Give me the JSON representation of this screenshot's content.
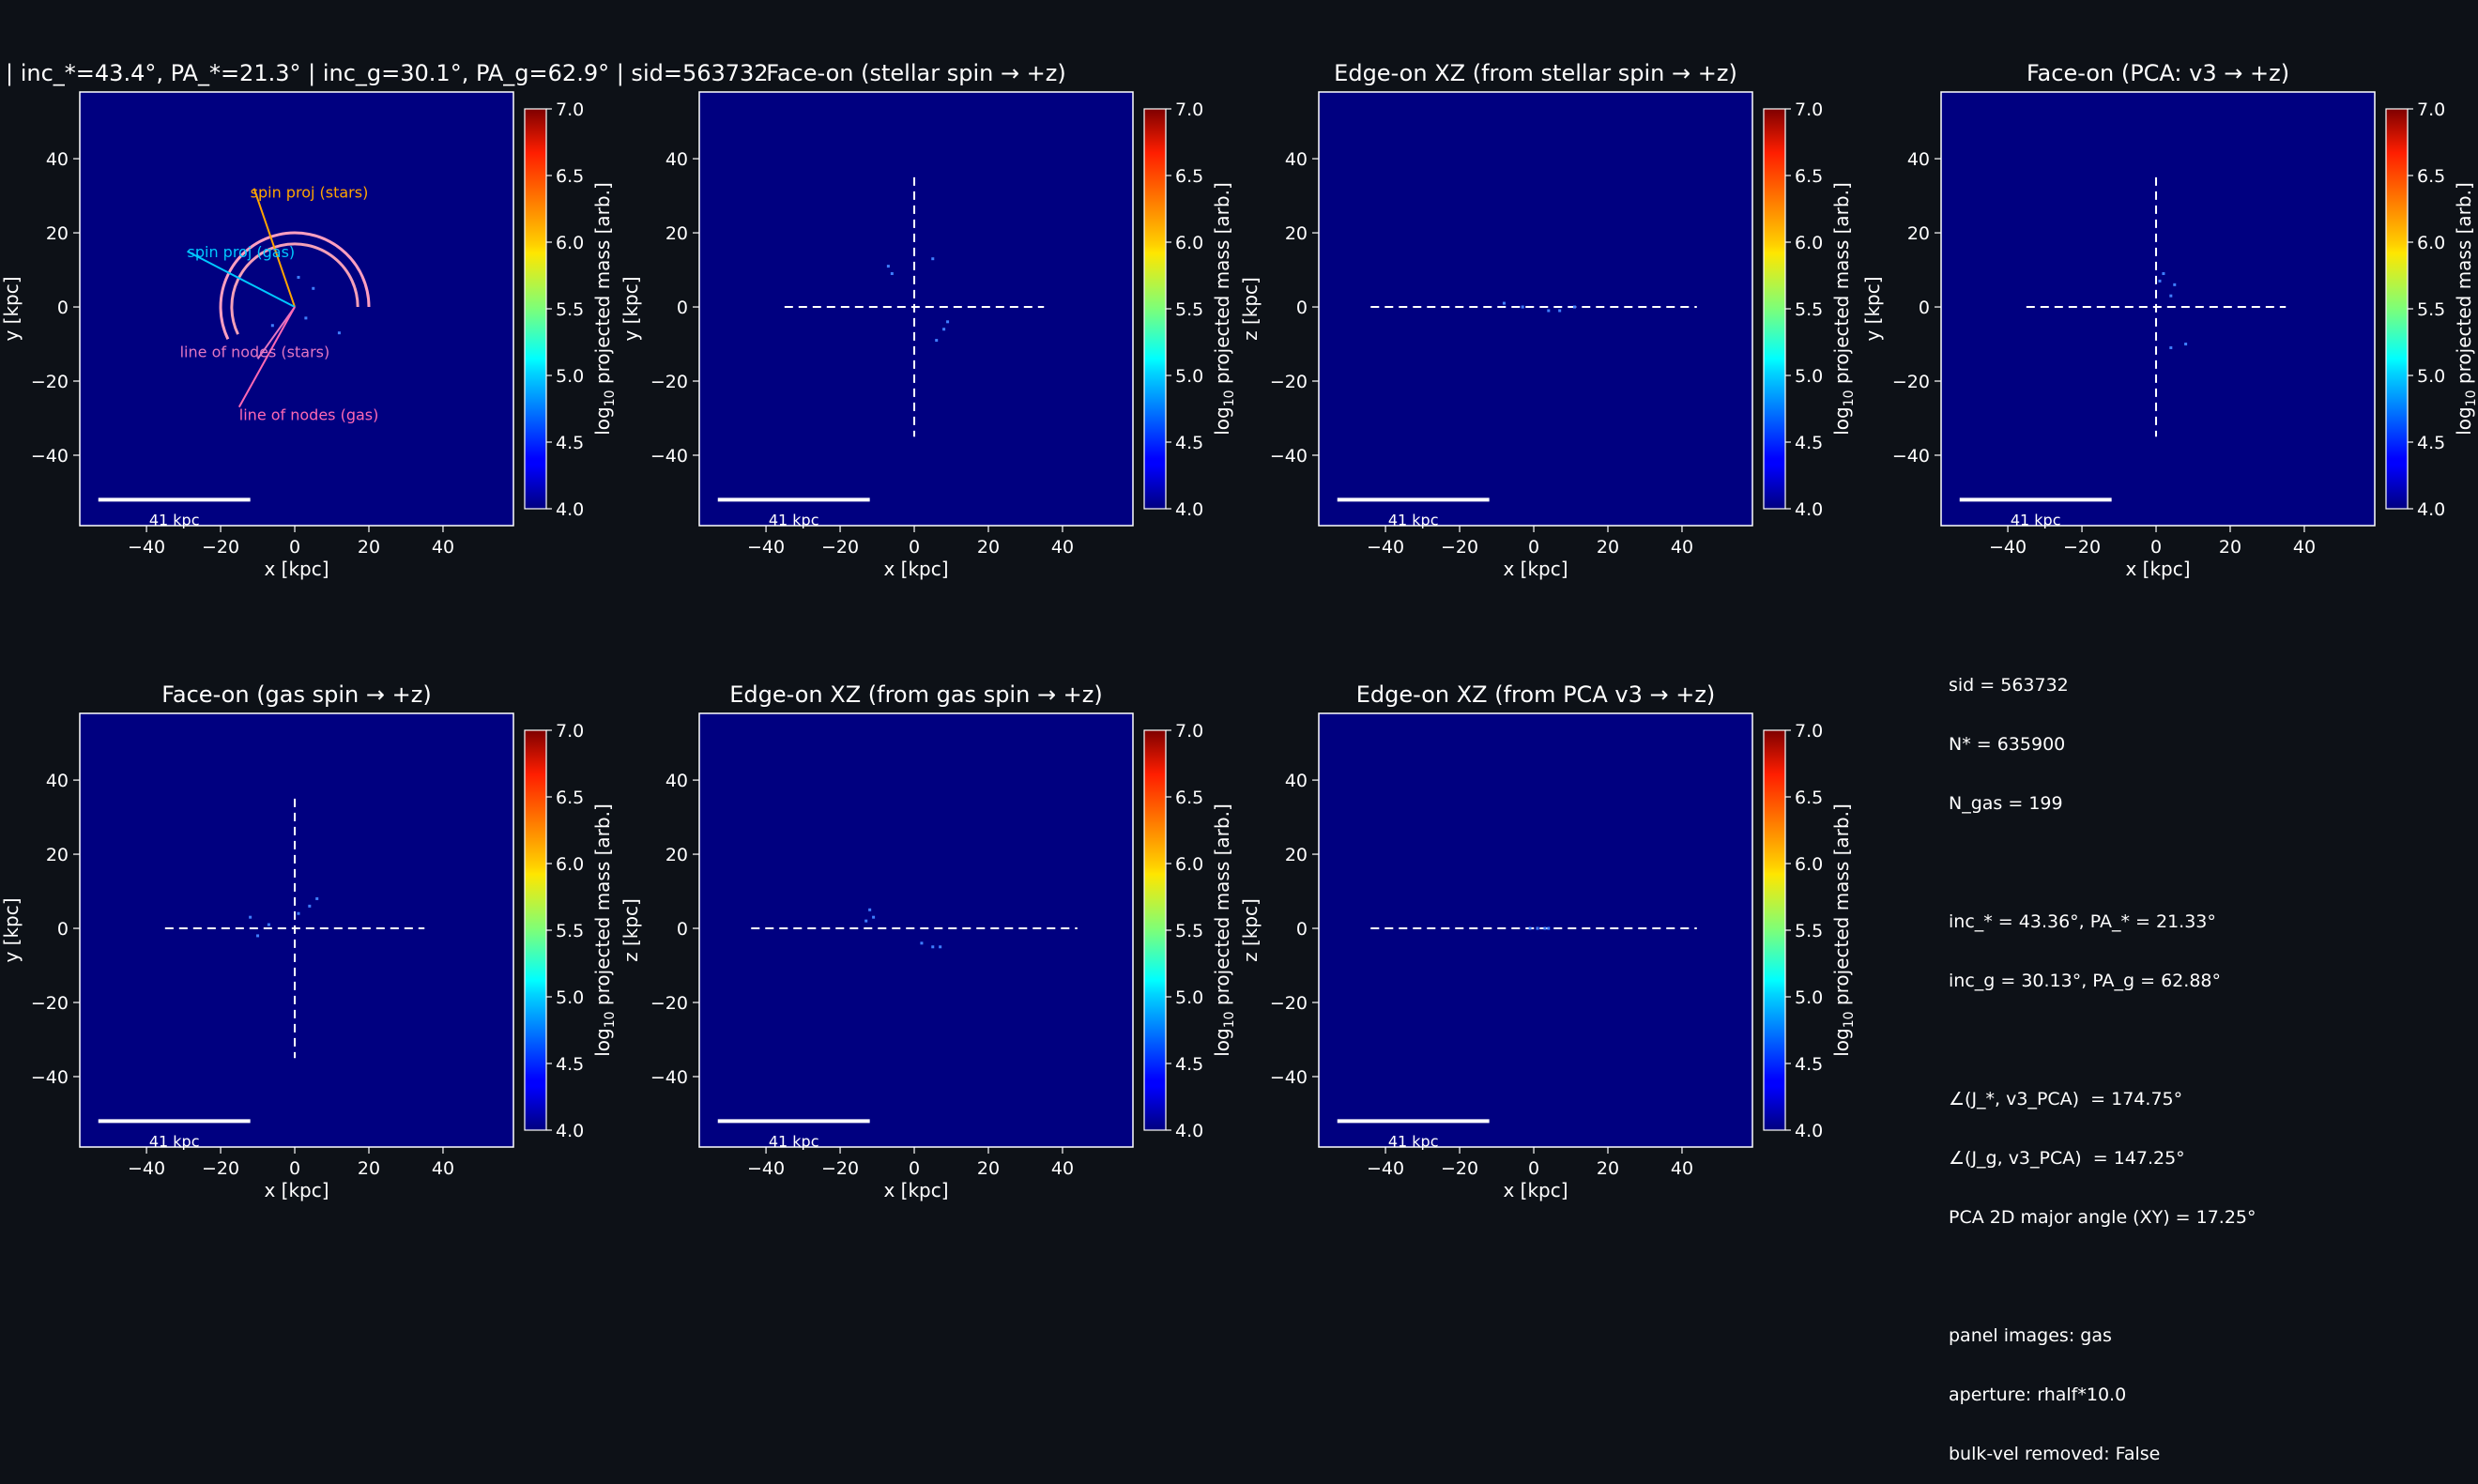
{
  "figure_title": "| inc_*=43.4°, PA_*=21.3° | inc_g=30.1°, PA_g=62.9° | sid=563732",
  "colors": {
    "background": "#0d1117",
    "panel_fill": "#000080",
    "frame": "#ffffff",
    "spin_stars": "#ffa500",
    "spin_gas": "#00c8ff",
    "nodes_stars": "#e377c2",
    "nodes_gas": "#ff69b4",
    "arc_stars": "#f4a0b8",
    "arc_gas": "#ff9fc0",
    "gas_particles": "#3f7fff"
  },
  "colorbar": {
    "label_prefix": "log",
    "label_sub": "10",
    "label_suffix": " projected mass [arb.]",
    "ticks": [
      "4.0",
      "4.5",
      "5.0",
      "5.5",
      "6.0",
      "6.5",
      "7.0"
    ],
    "range": [
      4.0,
      7.0
    ],
    "colormap": "jet"
  },
  "scalebar_label": "41 kpc",
  "panels": [
    {
      "title": "",
      "xlabel": "x [kpc]",
      "ylabel": "y [kpc]",
      "xticks": [
        "−40",
        "−20",
        "0",
        "20",
        "40"
      ],
      "yticks": [
        "40",
        "20",
        "0",
        "−20",
        "−40"
      ],
      "cross": false,
      "annotations": {
        "spin_stars": "spin proj (stars)",
        "spin_gas": "spin proj (gas)",
        "nodes_stars": "line of nodes (stars)",
        "nodes_gas": "line of nodes (gas)"
      }
    },
    {
      "title": "Face-on (stellar spin → +z)",
      "xlabel": "x [kpc]",
      "ylabel": "y [kpc]",
      "xticks": [
        "−40",
        "−20",
        "0",
        "20",
        "40"
      ],
      "yticks": [
        "40",
        "20",
        "0",
        "−20",
        "−40"
      ],
      "cross": true
    },
    {
      "title": "Edge-on XZ (from stellar spin → +z)",
      "xlabel": "x [kpc]",
      "ylabel": "z [kpc]",
      "xticks": [
        "−40",
        "−20",
        "0",
        "20",
        "40"
      ],
      "yticks": [
        "40",
        "20",
        "0",
        "−20",
        "−40"
      ],
      "cross": false
    },
    {
      "title": "Face-on (PCA: v3 → +z)",
      "xlabel": "x [kpc]",
      "ylabel": "y [kpc]",
      "xticks": [
        "−40",
        "−20",
        "0",
        "20",
        "40"
      ],
      "yticks": [
        "40",
        "20",
        "0",
        "−20",
        "−40"
      ],
      "cross": true
    },
    {
      "title": "Face-on (gas spin → +z)",
      "xlabel": "x [kpc]",
      "ylabel": "y [kpc]",
      "xticks": [
        "−40",
        "−20",
        "0",
        "20",
        "40"
      ],
      "yticks": [
        "40",
        "20",
        "0",
        "−20",
        "−40"
      ],
      "cross": true
    },
    {
      "title": "Edge-on XZ (from gas spin → +z)",
      "xlabel": "x [kpc]",
      "ylabel": "z [kpc]",
      "xticks": [
        "−40",
        "−20",
        "0",
        "20",
        "40"
      ],
      "yticks": [
        "40",
        "20",
        "0",
        "−20",
        "−40"
      ],
      "cross": false
    },
    {
      "title": "Edge-on XZ (from PCA v3 → +z)",
      "xlabel": "x [kpc]",
      "ylabel": "z [kpc]",
      "xticks": [
        "−40",
        "−20",
        "0",
        "20",
        "40"
      ],
      "yticks": [
        "40",
        "20",
        "0",
        "−20",
        "−40"
      ],
      "cross": false
    }
  ],
  "info": {
    "line_sid": "sid = 563732",
    "line_nstar": "N* = 635900",
    "line_ngas": "N_gas = 199",
    "line_stars": "inc_* = 43.36°, PA_* = 21.33°",
    "line_gas": "inc_g = 30.13°, PA_g = 62.88°",
    "line_angle_stars": "∠(J_*, v3_PCA)  = 174.75°",
    "line_angle_gas": "∠(J_g, v3_PCA)  = 147.25°",
    "line_pca": "PCA 2D major angle (XY) = 17.25°",
    "line_images": "panel images: gas",
    "line_aperture": "aperture: rhalf*10.0",
    "line_bulk": "bulk-vel removed: False"
  },
  "chart_data": {
    "type": "heatmap",
    "xlim": [
      -58,
      59
    ],
    "ylim": [
      -59,
      58
    ],
    "color_range": [
      4.0,
      7.0
    ],
    "scalebar_kpc": 41,
    "scalebar_start_kpc": -53,
    "guide_cross_half_kpc": 35,
    "edge_guide_x_kpc": [
      -44,
      44
    ],
    "spin_stars_end": [
      -11,
      32
    ],
    "spin_gas_end": [
      -29,
      15
    ],
    "nodes_stars_end": [
      -10,
      -14
    ],
    "nodes_gas_end": [
      -15,
      -27
    ],
    "arc_radii_kpc": [
      17,
      20
    ],
    "gas_points": [
      [
        [
          1,
          8
        ],
        [
          5,
          5
        ],
        [
          12,
          -7
        ],
        [
          3,
          -3
        ],
        [
          -6,
          -5
        ]
      ],
      [
        [
          -7,
          11
        ],
        [
          5,
          13
        ],
        [
          9,
          -4
        ],
        [
          8,
          -6
        ],
        [
          6,
          -9
        ],
        [
          -6,
          9
        ]
      ],
      [
        [
          -8,
          1
        ],
        [
          4,
          -1
        ],
        [
          7,
          -1
        ],
        [
          11,
          0
        ],
        [
          -3,
          0
        ]
      ],
      [
        [
          2,
          9
        ],
        [
          5,
          6
        ],
        [
          8,
          -10
        ],
        [
          4,
          -11
        ],
        [
          1,
          7
        ],
        [
          4,
          3
        ]
      ],
      [
        [
          -12,
          3
        ],
        [
          1,
          4
        ],
        [
          4,
          6
        ],
        [
          6,
          8
        ],
        [
          -10,
          -2
        ],
        [
          -7,
          1
        ]
      ],
      [
        [
          -11,
          3
        ],
        [
          -13,
          2
        ],
        [
          2,
          -4
        ],
        [
          5,
          -5
        ],
        [
          7,
          -5
        ],
        [
          -12,
          5
        ]
      ],
      [
        [
          1,
          0
        ],
        [
          3,
          0
        ],
        [
          -1,
          0
        ],
        [
          4,
          0
        ]
      ]
    ]
  }
}
